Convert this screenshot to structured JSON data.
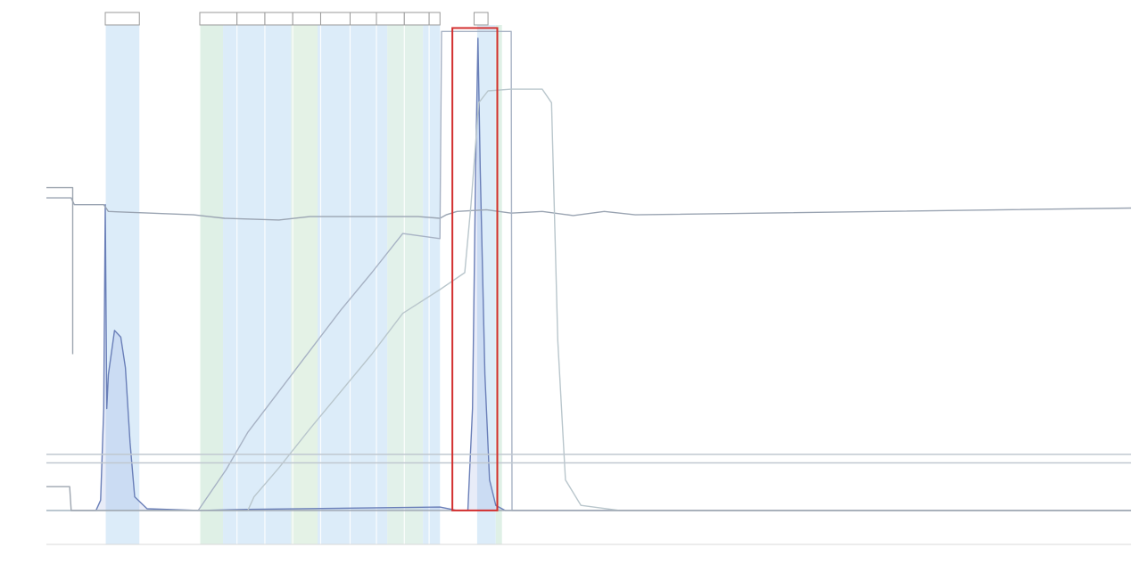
{
  "chart_data": {
    "type": "line",
    "title": "",
    "xlabel": "",
    "ylabel": "",
    "xlim": [
      0,
      70
    ],
    "ylim": [
      -100,
      1450
    ],
    "x_ticks": [],
    "y_ticks": [],
    "grid": false,
    "fractions": [
      {
        "x0": 3.8,
        "x1": 6.0,
        "label": ""
      },
      {
        "x0": 9.9,
        "x1": 12.3,
        "label": ""
      },
      {
        "x0": 12.3,
        "x1": 14.1,
        "label": ""
      },
      {
        "x0": 14.1,
        "x1": 15.9,
        "label": ""
      },
      {
        "x0": 15.9,
        "x1": 17.7,
        "label": ""
      },
      {
        "x0": 17.7,
        "x1": 19.6,
        "label": ""
      },
      {
        "x0": 19.6,
        "x1": 21.3,
        "label": ""
      },
      {
        "x0": 21.3,
        "x1": 23.1,
        "label": ""
      },
      {
        "x0": 23.1,
        "x1": 24.7,
        "label": ""
      },
      {
        "x0": 24.7,
        "x1": 25.4,
        "label": ""
      },
      {
        "x0": 27.6,
        "x1": 28.5,
        "label": ""
      }
    ],
    "shaded_regions": [
      {
        "x0": 3.8,
        "x1": 6.0,
        "color": "#dcecf9"
      },
      {
        "x0": 9.9,
        "x1": 11.4,
        "color": "#dff0e6"
      },
      {
        "x0": 11.4,
        "x1": 15.8,
        "color": "#dcecf9"
      },
      {
        "x0": 15.8,
        "x1": 17.5,
        "color": "#e4f2e6"
      },
      {
        "x0": 17.5,
        "x1": 22.0,
        "color": "#dcecf9"
      },
      {
        "x0": 22.0,
        "x1": 24.3,
        "color": "#e2f1ea"
      },
      {
        "x0": 24.3,
        "x1": 25.4,
        "color": "#dcecf9"
      },
      {
        "x0": 27.8,
        "x1": 29.0,
        "color": "#dcecf9"
      },
      {
        "x0": 29.0,
        "x1": 29.4,
        "color": "#dff0e6"
      }
    ],
    "series": [
      {
        "color": "#6a7fb8",
        "points": [
          [
            0,
            0
          ],
          [
            3.2,
            0
          ],
          [
            3.5,
            30
          ],
          [
            3.7,
            300
          ],
          [
            3.8,
            900
          ],
          [
            3.9,
            300
          ],
          [
            4.0,
            400
          ],
          [
            4.4,
            530
          ],
          [
            4.8,
            510
          ],
          [
            5.1,
            420
          ],
          [
            5.4,
            200
          ],
          [
            5.7,
            40
          ],
          [
            6.5,
            5
          ],
          [
            9.9,
            0
          ],
          [
            13.0,
            3
          ],
          [
            25.4,
            10
          ],
          [
            26.5,
            0
          ],
          [
            27.2,
            0
          ],
          [
            27.5,
            300
          ],
          [
            27.7,
            1000
          ],
          [
            27.85,
            1390
          ],
          [
            28.0,
            1000
          ],
          [
            28.3,
            400
          ],
          [
            28.6,
            90
          ],
          [
            29.0,
            15
          ],
          [
            29.6,
            0
          ],
          [
            70,
            0
          ]
        ]
      },
      {
        "color": "#9aa4b2",
        "points": [
          [
            0,
            920
          ],
          [
            1.6,
            920
          ],
          [
            1.8,
            900
          ],
          [
            3.7,
            900
          ],
          [
            4.0,
            880
          ],
          [
            9.5,
            870
          ],
          [
            10.5,
            865
          ],
          [
            11.5,
            860
          ],
          [
            15.0,
            855
          ],
          [
            17.0,
            865
          ],
          [
            20.0,
            865
          ],
          [
            24.0,
            865
          ],
          [
            25.4,
            860
          ],
          [
            25.8,
            870
          ],
          [
            26.5,
            880
          ],
          [
            28.4,
            885
          ],
          [
            30.0,
            875
          ],
          [
            32.0,
            880
          ],
          [
            34.0,
            868
          ],
          [
            36.0,
            880
          ],
          [
            38.0,
            870
          ],
          [
            70,
            890
          ]
        ]
      },
      {
        "color": "#a7b2c4",
        "points": [
          [
            0,
            0
          ],
          [
            9.8,
            0
          ],
          [
            11.6,
            120
          ],
          [
            13.0,
            230
          ],
          [
            15.0,
            350
          ],
          [
            17.0,
            470
          ],
          [
            19.0,
            590
          ],
          [
            21.0,
            700
          ],
          [
            23.0,
            815
          ],
          [
            25.4,
            800
          ],
          [
            25.5,
            1410
          ],
          [
            30.0,
            1410
          ],
          [
            30.05,
            0
          ],
          [
            70,
            0
          ]
        ]
      },
      {
        "color": "#b9c6cc",
        "points": [
          [
            0,
            0
          ],
          [
            13.0,
            0
          ],
          [
            13.4,
            40
          ],
          [
            15.0,
            125
          ],
          [
            17.0,
            240
          ],
          [
            19.0,
            350
          ],
          [
            21.0,
            460
          ],
          [
            23.0,
            580
          ],
          [
            25.4,
            650
          ],
          [
            27.0,
            700
          ],
          [
            27.4,
            900
          ],
          [
            27.9,
            1200
          ],
          [
            28.5,
            1235
          ],
          [
            30.0,
            1240
          ],
          [
            32.0,
            1240
          ],
          [
            32.6,
            1200
          ],
          [
            33.0,
            500
          ],
          [
            33.5,
            90
          ],
          [
            34.5,
            15
          ],
          [
            37.0,
            0
          ],
          [
            70,
            0
          ]
        ]
      },
      {
        "color": "#9ea6b0",
        "points": [
          [
            0,
            70
          ],
          [
            1.5,
            70
          ],
          [
            1.6,
            0
          ],
          [
            3.5,
            0
          ],
          [
            70,
            0
          ]
        ]
      },
      {
        "color": "#9ea6b0",
        "points": [
          [
            0,
            950
          ],
          [
            1.7,
            950
          ],
          [
            1.7,
            460
          ]
        ]
      },
      {
        "color": "#c0c8d0",
        "points": [
          [
            0,
            140
          ],
          [
            70,
            140
          ]
        ]
      },
      {
        "color": "#c0c8d0",
        "points": [
          [
            0,
            165
          ],
          [
            70,
            165
          ]
        ]
      }
    ],
    "highlight_box": {
      "x0": 26.2,
      "x1": 29.1,
      "y0": 0,
      "y1": 1420,
      "color": "#d32f2f"
    }
  }
}
